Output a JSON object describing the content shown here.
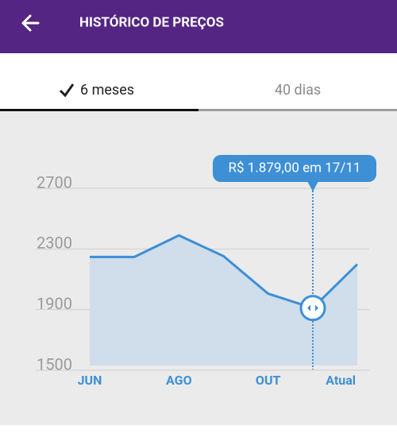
{
  "header": {
    "title": "HISTÓRICO DE PREÇOS"
  },
  "tabs": [
    {
      "label": "6 meses",
      "active": true
    },
    {
      "label": "40 dias",
      "active": false
    }
  ],
  "chart_data": {
    "type": "area",
    "categories": [
      "JUN",
      null,
      "AGO",
      null,
      "OUT",
      null,
      "Atual"
    ],
    "values": [
      2216,
      2216,
      2358,
      2221,
      1974,
      1879,
      2168
    ],
    "color": "#3d8fd6",
    "fill": "#cfdeea",
    "ylim": [
      1500,
      2700
    ],
    "yticks": [
      1500,
      1900,
      2300,
      2700
    ],
    "grid": true,
    "annotation": "R$ 1.879,00 em 17/11"
  }
}
